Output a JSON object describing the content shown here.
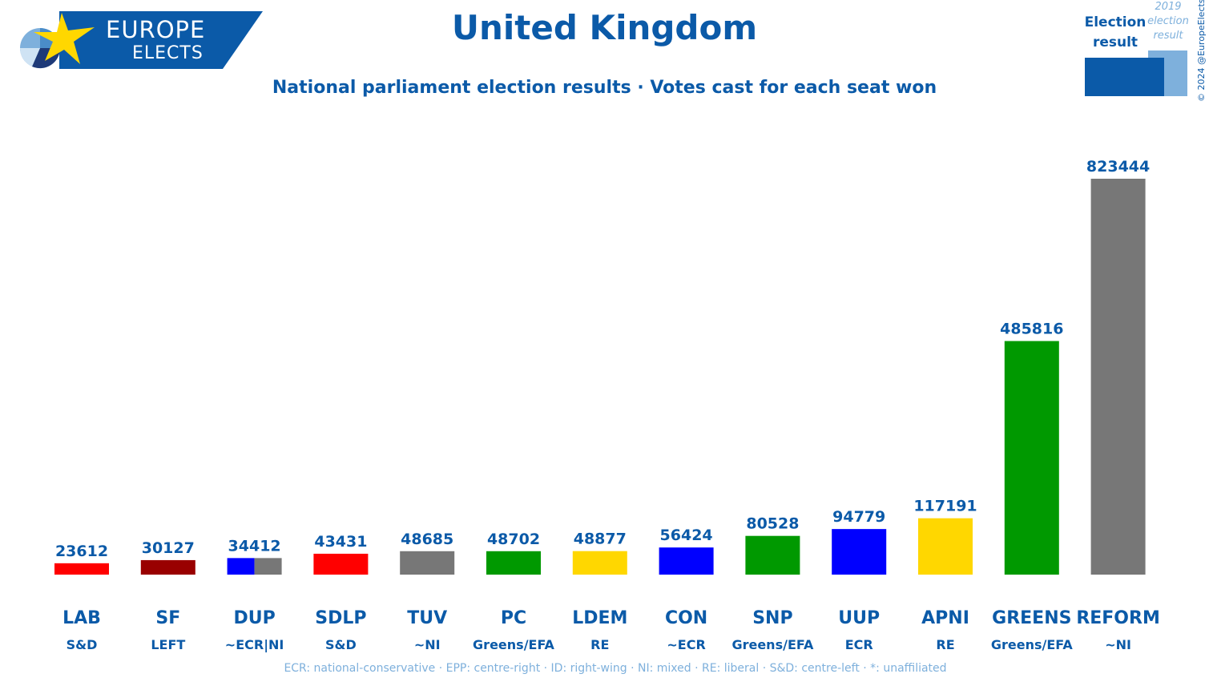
{
  "logo": {
    "line1": "EUROPE",
    "line2": "ELECTS"
  },
  "title": "United Kingdom",
  "subtitle": "National parliament election results · Votes cast for each seat won",
  "legend": {
    "current": "Election result",
    "previous": "2019 election result",
    "current_color": "#0b5aa8",
    "previous_color": "#7eb0dc"
  },
  "copyright": "© 2024 @EuropeElects",
  "footnote": "ECR: national-conservative · EPP: centre-right · ID: right-wing · NI: mixed · RE: liberal · S&D: centre-left · *: unaffiliated",
  "chart_data": {
    "type": "bar",
    "title": "United Kingdom",
    "ylabel": "",
    "xlabel": "",
    "ylim": [
      0,
      823444
    ],
    "categories": [
      "LAB",
      "SF",
      "DUP",
      "SDLP",
      "TUV",
      "PC",
      "LDEM",
      "CON",
      "SNP",
      "UUP",
      "APNI",
      "GREENS",
      "REFORM"
    ],
    "groups": [
      "S&D",
      "LEFT",
      "~ECR|NI",
      "S&D",
      "~NI",
      "Greens/EFA",
      "RE",
      "~ECR",
      "Greens/EFA",
      "ECR",
      "RE",
      "Greens/EFA",
      "~NI"
    ],
    "values": [
      23612,
      30127,
      34412,
      43431,
      48685,
      48702,
      48877,
      56424,
      80528,
      94779,
      117191,
      485816,
      823444
    ],
    "value_labels": [
      "23612",
      "30127",
      "34412",
      "43431",
      "48685",
      "48702",
      "48877",
      "56424",
      "80528",
      "94779",
      "117191",
      "485816",
      "823444"
    ],
    "colors": [
      [
        "#ff0000"
      ],
      [
        "#990000"
      ],
      [
        "#0000ff",
        "#777777"
      ],
      [
        "#ff0000"
      ],
      [
        "#777777"
      ],
      [
        "#009900"
      ],
      [
        "#ffd700"
      ],
      [
        "#0000ff"
      ],
      [
        "#009900"
      ],
      [
        "#0000ff"
      ],
      [
        "#ffd700"
      ],
      [
        "#009900"
      ],
      [
        "#777777"
      ]
    ],
    "grid": false,
    "legend": "top-right"
  }
}
